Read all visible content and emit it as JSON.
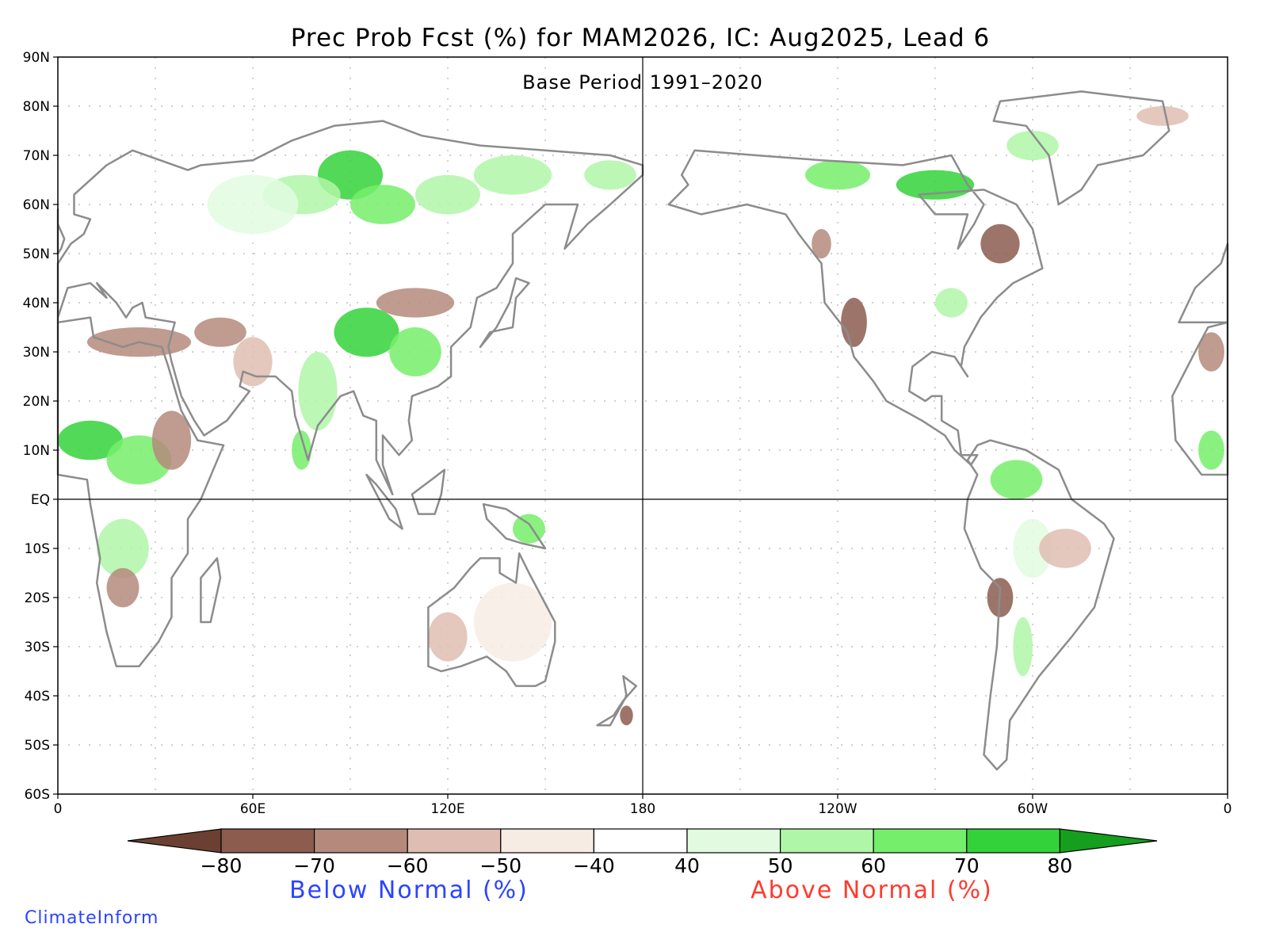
{
  "title": "Prec Prob Fcst (%) for MAM2026, IC: Aug2025, Lead 6",
  "subtitle": "Base Period 1991–2020",
  "lat_labels": [
    "90N",
    "80N",
    "70N",
    "60N",
    "50N",
    "40N",
    "30N",
    "20N",
    "10N",
    "EQ",
    "10S",
    "20S",
    "30S",
    "40S",
    "50S",
    "60S"
  ],
  "lon_labels": [
    "0",
    "60E",
    "120E",
    "180",
    "120W",
    "60W",
    "0"
  ],
  "colorbar": {
    "ticks": [
      "−80",
      "−70",
      "−60",
      "−50",
      "−40",
      "40",
      "50",
      "60",
      "70",
      "80"
    ],
    "colors": [
      "#6b4032",
      "#8c5c4f",
      "#b58a7d",
      "#dfbdb2",
      "#f7ece4",
      "#ffffff",
      "#e2fbe0",
      "#b0f6a8",
      "#75ee6b",
      "#34d23a",
      "#169e1e"
    ]
  },
  "below_label": "Below Normal (%)",
  "above_label": "Above Normal (%)",
  "below_color": "#2b44ff",
  "above_color": "#ff3a2e",
  "brand": "ClimateInform",
  "brand_color": "#2b44ff"
}
